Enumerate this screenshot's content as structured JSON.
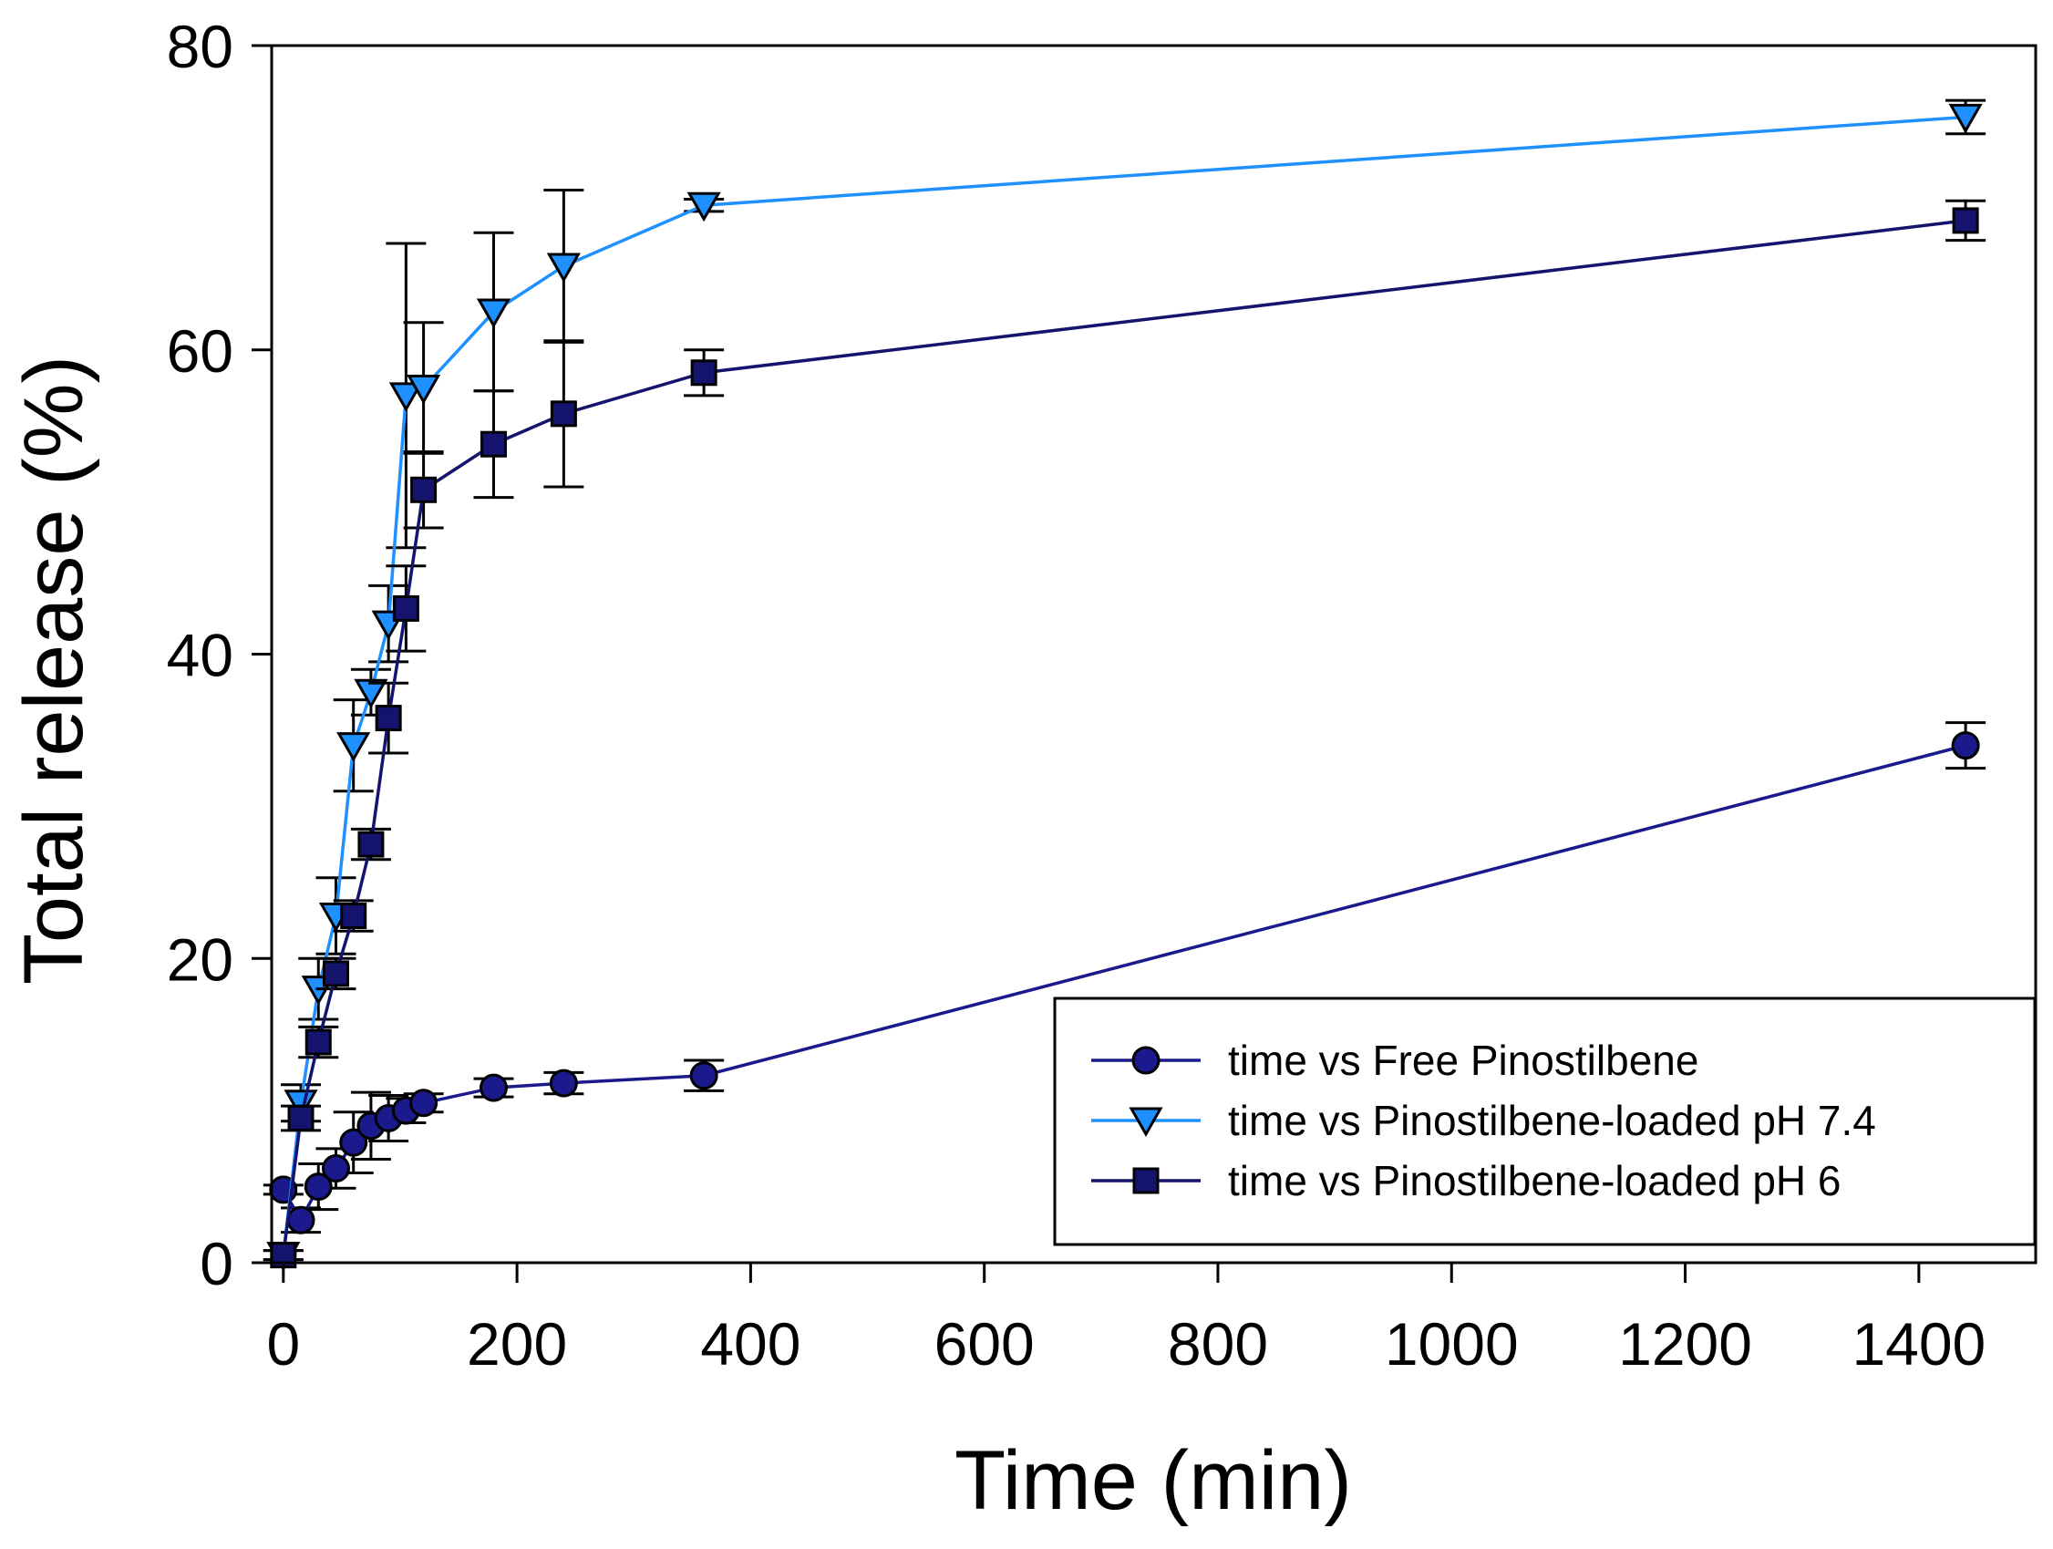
{
  "chart_data": {
    "type": "line",
    "title": "",
    "xlabel": "Time (min)",
    "ylabel": "Total release (%)",
    "xlim": [
      -10,
      1500
    ],
    "ylim": [
      0,
      80
    ],
    "xticks": [
      0,
      200,
      400,
      600,
      800,
      1000,
      1200,
      1400
    ],
    "yticks": [
      0,
      20,
      40,
      60,
      80
    ],
    "grid": false,
    "legend_position": "bottom-right",
    "series": [
      {
        "name": "time vs Free Pinostilbene",
        "marker": "circle",
        "color": "#1a1a8c",
        "x": [
          0,
          15,
          30,
          45,
          60,
          75,
          90,
          105,
          120,
          180,
          240,
          360,
          1440
        ],
        "y": [
          4.8,
          2.8,
          5.0,
          6.2,
          7.9,
          9.0,
          9.5,
          10.0,
          10.5,
          11.5,
          11.8,
          12.3,
          34.0
        ],
        "err": [
          0.3,
          0.8,
          1.5,
          1.3,
          2.0,
          2.2,
          1.5,
          0.8,
          0.6,
          0.6,
          0.7,
          1.0,
          1.5
        ]
      },
      {
        "name": "time vs Pinostilbene-loaded pH 7.4",
        "marker": "triangle-down",
        "color": "#1e90ff",
        "x": [
          0,
          15,
          30,
          45,
          60,
          75,
          90,
          105,
          120,
          180,
          240,
          360,
          1440
        ],
        "y": [
          0.5,
          10.5,
          18.0,
          22.8,
          34.0,
          37.5,
          42.0,
          57.0,
          57.5,
          62.5,
          65.5,
          69.5,
          75.3
        ],
        "err": [
          0.3,
          1.2,
          2.0,
          2.5,
          3.0,
          1.5,
          2.5,
          10.0,
          4.3,
          5.2,
          5.0,
          0.4,
          1.1
        ]
      },
      {
        "name": "time vs Pinostilbene-loaded pH 6",
        "marker": "square",
        "color": "#14146e",
        "x": [
          0,
          15,
          30,
          45,
          60,
          75,
          90,
          105,
          120,
          180,
          240,
          360,
          1440
        ],
        "y": [
          0.5,
          9.5,
          14.5,
          19.0,
          22.8,
          27.5,
          35.8,
          43.0,
          50.8,
          53.8,
          55.8,
          58.5,
          68.5
        ],
        "err": [
          0.3,
          0.8,
          1.0,
          1.0,
          1.0,
          1.0,
          2.3,
          2.8,
          2.5,
          3.5,
          4.8,
          1.5,
          1.3
        ]
      }
    ]
  }
}
